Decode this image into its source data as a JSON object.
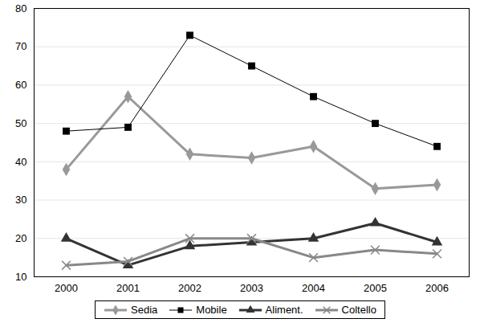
{
  "chart_data": {
    "type": "line",
    "categories": [
      "2000",
      "2001",
      "2002",
      "2003",
      "2004",
      "2005",
      "2006"
    ],
    "series": [
      {
        "name": "Sedia",
        "color": "#999999",
        "marker": "diamond",
        "values": [
          38,
          57,
          42,
          41,
          44,
          33,
          34
        ]
      },
      {
        "name": "Mobile",
        "color": "#000000",
        "marker": "square",
        "values": [
          48,
          49,
          73,
          65,
          57,
          50,
          44
        ]
      },
      {
        "name": "Aliment.",
        "color": "#333333",
        "marker": "triangle",
        "values": [
          20,
          13,
          18,
          19,
          20,
          24,
          19
        ]
      },
      {
        "name": "Coltello",
        "color": "#888888",
        "marker": "times",
        "values": [
          13,
          14,
          20,
          20,
          15,
          17,
          16
        ]
      }
    ],
    "ylim": [
      10,
      80
    ],
    "yticks": [
      10,
      20,
      30,
      40,
      50,
      60,
      70,
      80
    ],
    "grid": true,
    "legend": "bottom"
  }
}
